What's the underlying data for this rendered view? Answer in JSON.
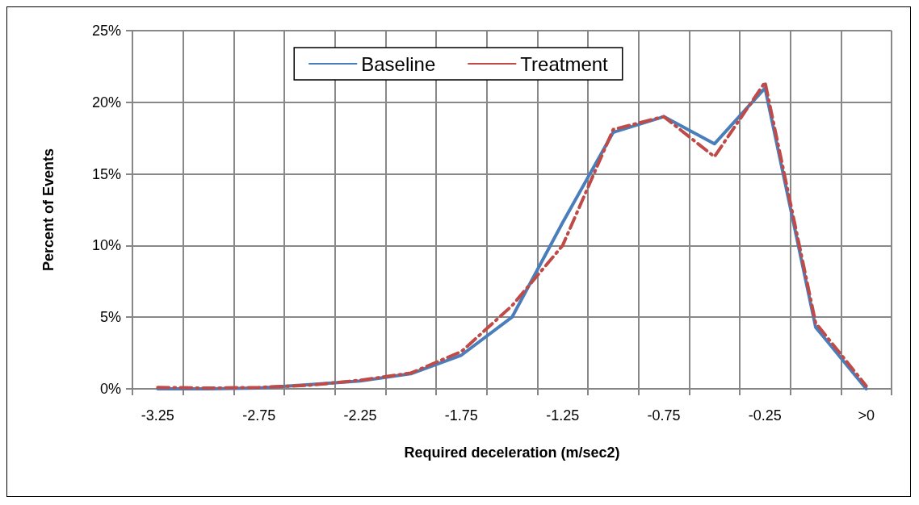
{
  "chart_data": {
    "type": "line",
    "xlabel": "Required deceleration (m/sec2)",
    "ylabel": "Percent of Events",
    "categories": [
      "-3.25",
      null,
      "-2.75",
      null,
      "-2.25",
      null,
      "-1.75",
      null,
      "-1.25",
      null,
      "-0.75",
      null,
      "-0.25",
      null,
      ">0"
    ],
    "series": [
      {
        "name": "Baseline",
        "color": "#4a7ebb",
        "line_style": "solid",
        "values": [
          0.0,
          0.0,
          0.05,
          0.3,
          0.55,
          1.05,
          2.35,
          5.0,
          11.6,
          17.9,
          19.0,
          17.1,
          21.0,
          4.3,
          0.0
        ]
      },
      {
        "name": "Treatment",
        "color": "#be4b48",
        "line_style": "dashed",
        "values": [
          0.1,
          0.05,
          0.1,
          0.25,
          0.6,
          1.1,
          2.6,
          5.8,
          10.0,
          18.1,
          19.0,
          16.2,
          21.4,
          4.6,
          0.2
        ]
      }
    ],
    "ylim": [
      0,
      25
    ],
    "yticks": [
      {
        "value": 0,
        "label": "0%"
      },
      {
        "value": 5,
        "label": "5%"
      },
      {
        "value": 10,
        "label": "10%"
      },
      {
        "value": 15,
        "label": "15%"
      },
      {
        "value": 20,
        "label": "20%"
      },
      {
        "value": 25,
        "label": "25%"
      }
    ],
    "grid": true,
    "legend": "top",
    "marker": "none"
  }
}
